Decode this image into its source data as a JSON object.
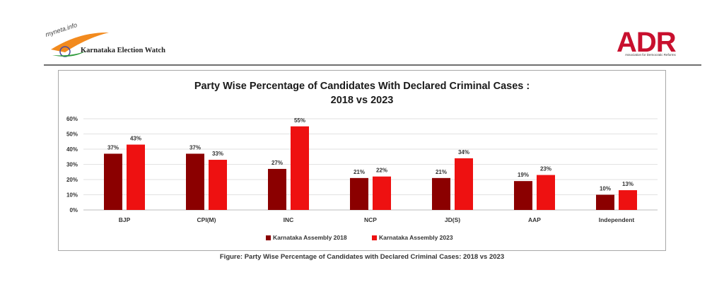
{
  "header": {
    "left_logo_site": "myneta.info",
    "left_logo_text": "Karnataka Election Watch",
    "right_logo_text": "ADR",
    "right_logo_tagline": "Association for Democratic Reforms"
  },
  "chart_data": {
    "type": "bar",
    "title": "Party Wise Percentage of Candidates With Declared Criminal Cases :",
    "subtitle": "2018 vs 2023",
    "categories": [
      "BJP",
      "CPI(M)",
      "INC",
      "NCP",
      "JD(S)",
      "AAP",
      "Independent"
    ],
    "series": [
      {
        "name": "Karnataka Assembly 2018",
        "values": [
          37,
          37,
          27,
          21,
          21,
          19,
          10
        ],
        "color": "#8b0000"
      },
      {
        "name": "Karnataka Assembly 2023",
        "values": [
          43,
          33,
          55,
          22,
          34,
          23,
          13
        ],
        "color": "#ee1111"
      }
    ],
    "value_suffix": "%",
    "yticks": [
      "0%",
      "10%",
      "20%",
      "30%",
      "40%",
      "50%",
      "60%"
    ],
    "ylim": [
      0,
      60
    ],
    "xlabel": "",
    "ylabel": "",
    "grid": true,
    "legend_position": "bottom"
  },
  "caption": "Figure: Party Wise Percentage of Candidates with Declared Criminal Cases: 2018 vs 2023"
}
